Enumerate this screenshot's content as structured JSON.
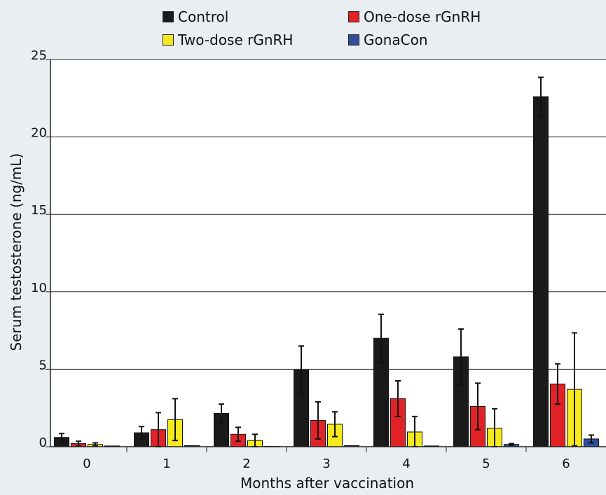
{
  "chart_data": {
    "type": "bar",
    "xlabel": "Months after vaccination",
    "ylabel": "Serum testosterone (ng/mL)",
    "categories": [
      "0",
      "1",
      "2",
      "3",
      "4",
      "5",
      "6"
    ],
    "ylim": [
      0,
      25
    ],
    "yticks": [
      "0",
      "5",
      "10",
      "15",
      "20",
      "25"
    ],
    "grid": true,
    "legend_position": "top",
    "series": [
      {
        "name": "Control",
        "color": "#1a1a1a",
        "values": [
          0.6,
          0.9,
          2.15,
          4.95,
          7.0,
          5.8,
          22.6
        ],
        "errors": [
          0.25,
          0.4,
          0.6,
          1.55,
          1.55,
          1.8,
          1.25
        ]
      },
      {
        "name": "One-dose rGnRH",
        "color": "#e32227",
        "values": [
          0.2,
          1.1,
          0.8,
          1.7,
          3.1,
          2.6,
          4.05
        ],
        "errors": [
          0.15,
          1.1,
          0.45,
          1.2,
          1.15,
          1.5,
          1.3
        ]
      },
      {
        "name": "Two-dose rGnRH",
        "color": "#f6ea1e",
        "values": [
          0.15,
          1.75,
          0.4,
          1.45,
          0.95,
          1.2,
          3.7
        ],
        "errors": [
          0.1,
          1.35,
          0.4,
          0.8,
          1.0,
          1.25,
          3.65
        ]
      },
      {
        "name": "GonaCon",
        "color": "#2e4f9e",
        "values": [
          0.05,
          0.07,
          0.02,
          0.07,
          0.05,
          0.15,
          0.5
        ],
        "errors": [
          0.0,
          0.0,
          0.0,
          0.0,
          0.0,
          0.05,
          0.25
        ]
      }
    ]
  }
}
